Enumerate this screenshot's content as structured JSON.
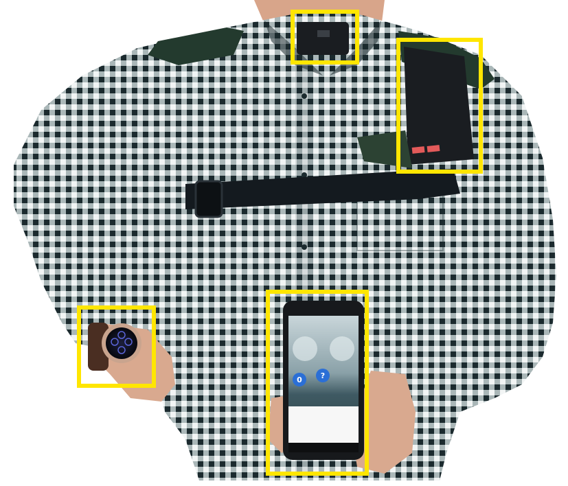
{
  "colors": {
    "highlight": "#ffe600",
    "shirt_dark": "#1b2a2e",
    "shirt_light": "#f2f5f5",
    "strap": "#141a1f",
    "patch": "#233a2e",
    "background": "#ffffff"
  },
  "phone": {
    "left_count": "0",
    "right_glyph": "?",
    "left_caption": "",
    "right_caption": ""
  }
}
